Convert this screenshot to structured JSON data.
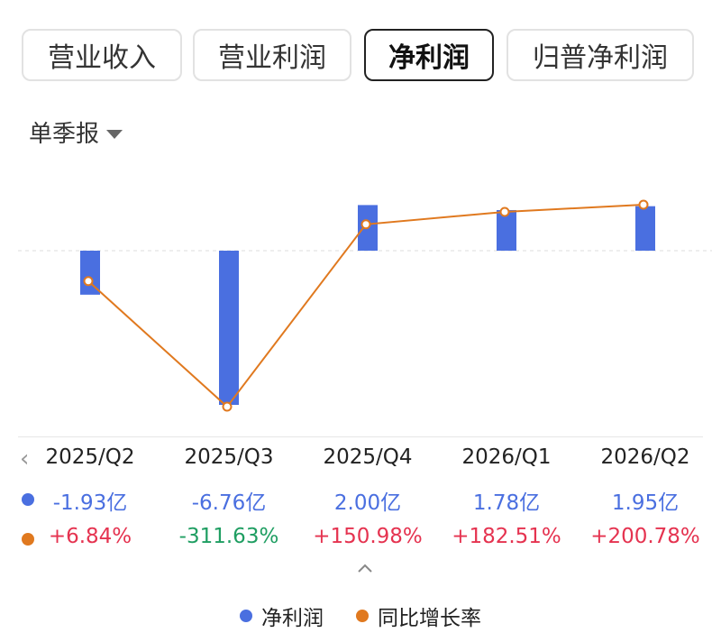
{
  "tabs": [
    {
      "label": "营业收入",
      "active": false
    },
    {
      "label": "营业利润",
      "active": false
    },
    {
      "label": "净利润",
      "active": true
    },
    {
      "label": "归普净利润",
      "active": false
    }
  ],
  "period_selector": {
    "label": "单季报",
    "icon": "caret-down-icon"
  },
  "colors": {
    "bar": "#4a6fe0",
    "line": "#e0791f",
    "positive": "#e53350",
    "negative": "#1f9e62"
  },
  "chart_data": {
    "type": "bar",
    "categories": [
      "2025/Q2",
      "2025/Q3",
      "2025/Q4",
      "2026/Q1",
      "2026/Q2"
    ],
    "series": [
      {
        "name": "净利润",
        "type": "bar",
        "values": [
          -1.93,
          -6.76,
          2.0,
          1.78,
          1.95
        ],
        "unit": "亿"
      },
      {
        "name": "同比增长率",
        "type": "line",
        "values": [
          6.84,
          -311.63,
          150.98,
          182.51,
          200.78
        ],
        "unit": "%"
      }
    ],
    "value_labels": [
      "-1.93亿",
      "-6.76亿",
      "2.00亿",
      "1.78亿",
      "1.95亿"
    ],
    "growth_labels": [
      "+6.84%",
      "-311.63%",
      "+150.98%",
      "+182.51%",
      "+200.78%"
    ],
    "legend": {
      "position": "bottom",
      "items": [
        "净利润",
        "同比增长率"
      ]
    }
  }
}
